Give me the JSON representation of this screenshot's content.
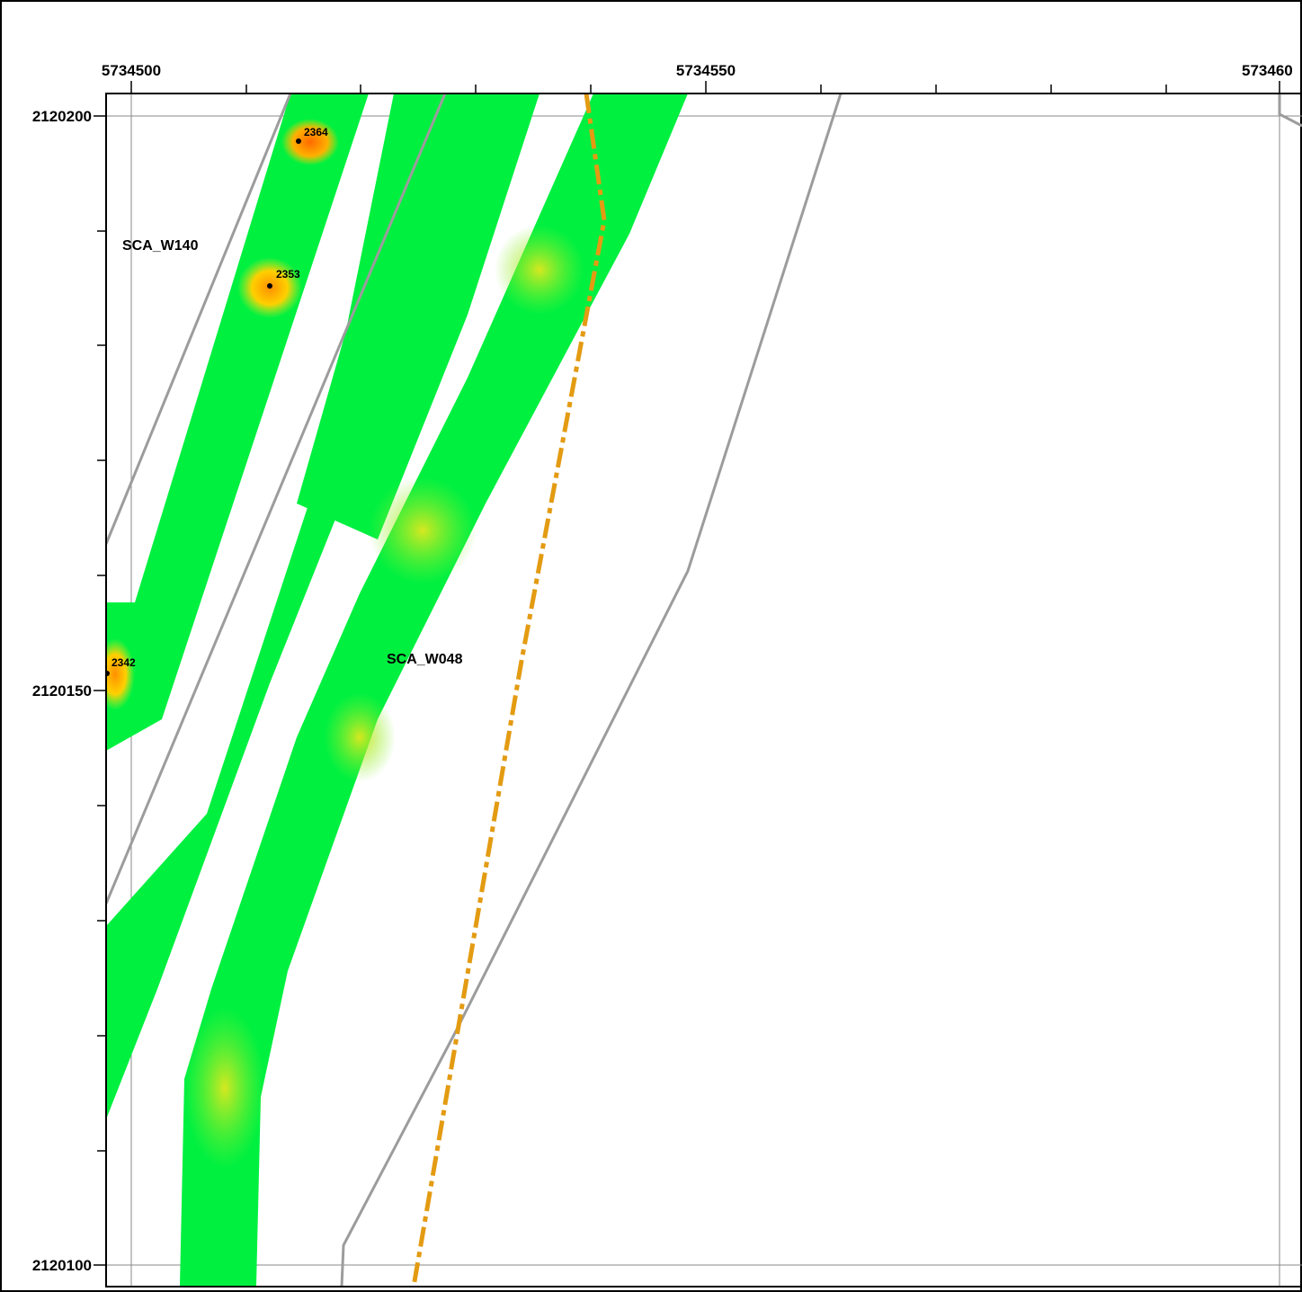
{
  "x_axis": {
    "labels": [
      {
        "text": "5734500"
      },
      {
        "text": "5734550"
      },
      {
        "text": "573460"
      }
    ]
  },
  "y_axis": {
    "labels": [
      {
        "text": "2120200"
      },
      {
        "text": "2120150"
      },
      {
        "text": "2120100"
      }
    ]
  },
  "line_labels": [
    {
      "text": "SCA_W140"
    },
    {
      "text": "SCA_W048"
    }
  ],
  "spot_soundings": [
    {
      "text": "2364"
    },
    {
      "text": "2353"
    },
    {
      "text": "2342"
    }
  ],
  "colors": {
    "swath_base": "#00f040",
    "swath_highlight": "#c8e828",
    "shallow": "#ff8a00",
    "survey_line": "#9c9c9c",
    "boundary": "#e39b12",
    "grid": "#888888",
    "frame": "#000000"
  }
}
